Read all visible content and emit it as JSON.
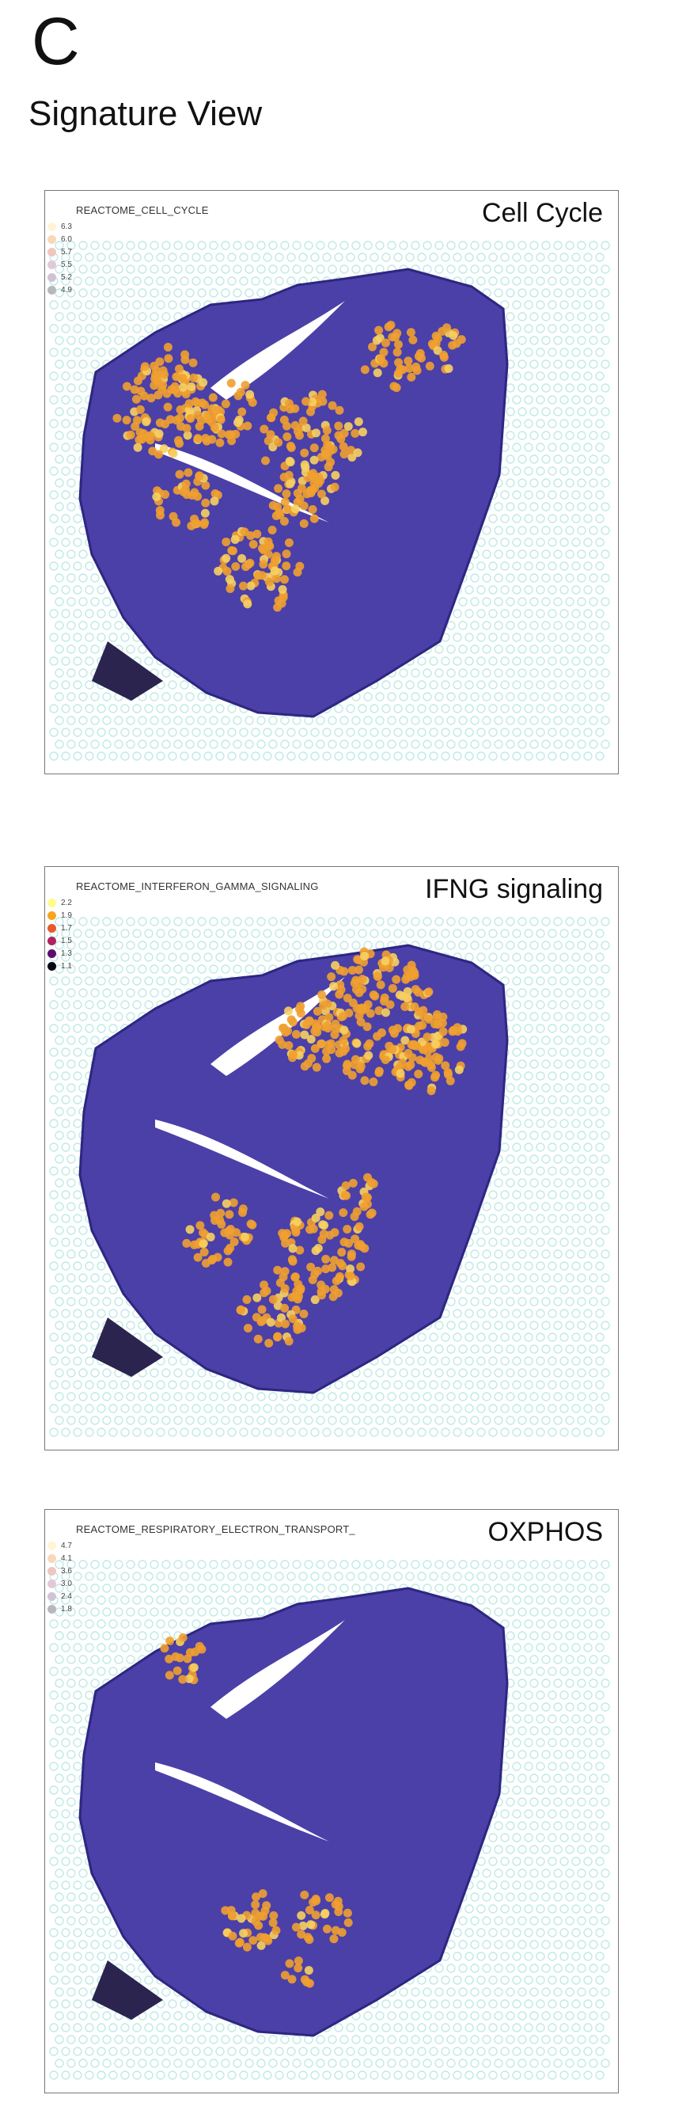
{
  "figure": {
    "panel_letter": "C",
    "section_title": "Signature View"
  },
  "panels": [
    {
      "signature": "REACTOME_CELL_CYCLE",
      "label": "Cell Cycle",
      "legend": [
        {
          "value": "6.3",
          "color": "#fff5d6"
        },
        {
          "value": "6.0",
          "color": "#f8d8b8"
        },
        {
          "value": "5.7",
          "color": "#efc6c0"
        },
        {
          "value": "5.5",
          "color": "#e3c8d8"
        },
        {
          "value": "5.2",
          "color": "#d2c2d6"
        },
        {
          "value": "4.9",
          "color": "#b8b8bc"
        }
      ]
    },
    {
      "signature": "REACTOME_INTERFERON_GAMMA_SIGNALING",
      "label": "IFNG signaling",
      "legend": [
        {
          "value": "2.2",
          "color": "#fffb8a"
        },
        {
          "value": "1.9",
          "color": "#f7a51c"
        },
        {
          "value": "1.7",
          "color": "#e85a2a"
        },
        {
          "value": "1.5",
          "color": "#b02160"
        },
        {
          "value": "1.3",
          "color": "#5e0d6e"
        },
        {
          "value": "1.1",
          "color": "#0a0a14"
        }
      ]
    },
    {
      "signature": "REACTOME_RESPIRATORY_ELECTRON_TRANSPORT_",
      "label": "OXPHOS",
      "legend": [
        {
          "value": "4.7",
          "color": "#fff5d6"
        },
        {
          "value": "4.1",
          "color": "#f8d8b8"
        },
        {
          "value": "3.6",
          "color": "#efc6c0"
        },
        {
          "value": "3.0",
          "color": "#e3c8d8"
        },
        {
          "value": "2.4",
          "color": "#d2c2d6"
        },
        {
          "value": "1.8",
          "color": "#b8b8bc"
        }
      ]
    }
  ],
  "colors": {
    "tissue": "#4b3fa8",
    "tissue_dark": "#2e2680",
    "hot_spot": "#f0a030",
    "background_spot": "#bfeae6"
  }
}
